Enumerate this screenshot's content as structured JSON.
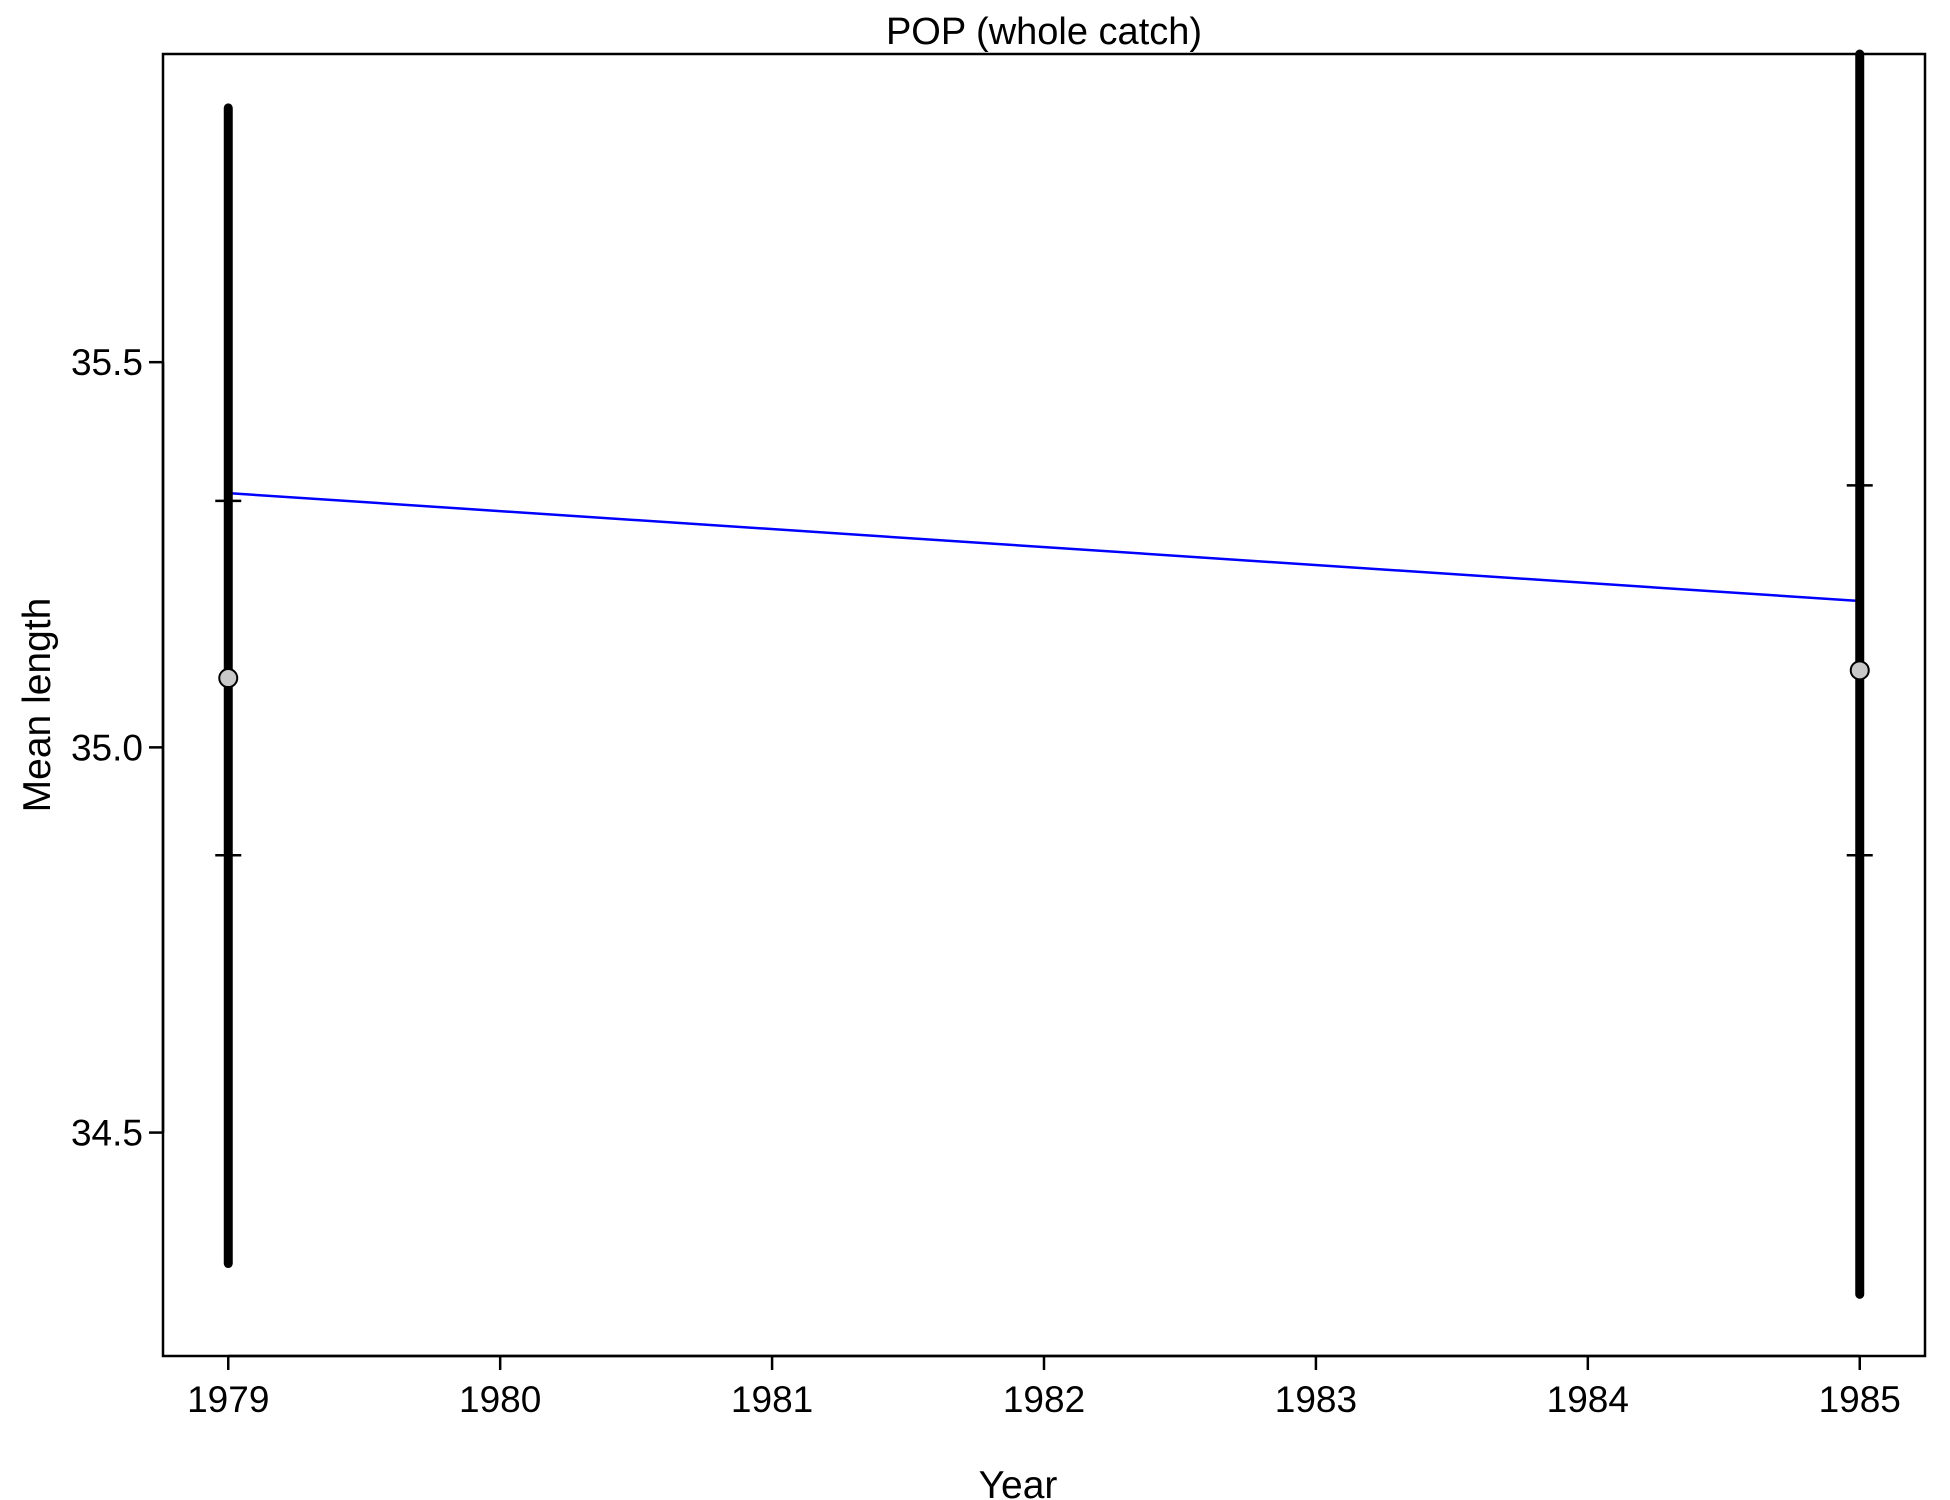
{
  "chart_data": {
    "type": "scatter",
    "title": "POP (whole catch)",
    "xlabel": "Year",
    "ylabel": "Mean length",
    "xlim": [
      1978.76,
      1985.24
    ],
    "ylim": [
      34.21,
      35.9
    ],
    "x_ticks": [
      1979,
      1980,
      1981,
      1982,
      1983,
      1984,
      1985
    ],
    "x_tick_labels": [
      "1979",
      "1980",
      "1981",
      "1982",
      "1983",
      "1984",
      "1985"
    ],
    "y_ticks": [
      34.5,
      35.0,
      35.5
    ],
    "y_tick_labels": [
      "34.5",
      "35.0",
      "35.5"
    ],
    "grid": false,
    "series": [
      {
        "kind": "points_with_error_bars",
        "x": [
          1979,
          1985
        ],
        "y": [
          35.09,
          35.1
        ],
        "ci_low": [
          34.33,
          34.29
        ],
        "ci_high": [
          35.83,
          35.9
        ],
        "se_low": [
          34.86,
          34.86
        ],
        "se_high": [
          35.32,
          35.34
        ],
        "point_fill": "#c8c8c8",
        "bar_color": "#000000"
      },
      {
        "kind": "trend_line",
        "x": [
          1979,
          1985
        ],
        "y": [
          35.33,
          35.19
        ],
        "color": "#0000ff"
      }
    ]
  }
}
